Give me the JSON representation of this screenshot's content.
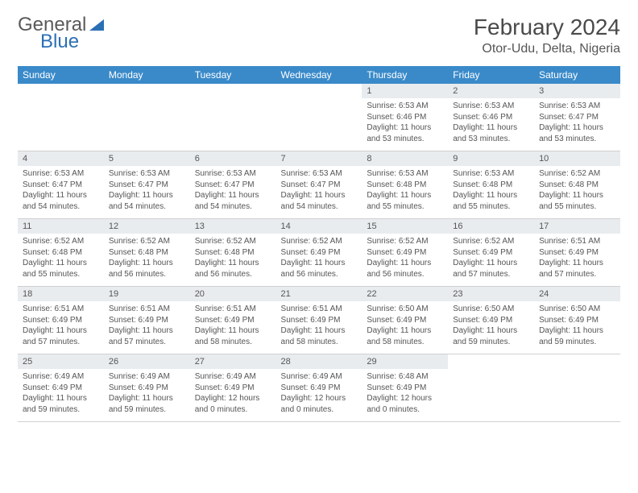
{
  "brand": {
    "part1": "General",
    "part2": "Blue"
  },
  "title": "February 2024",
  "location": "Otor-Udu, Delta, Nigeria",
  "colors": {
    "header_bg": "#3a8ac9",
    "header_text": "#ffffff",
    "daynum_bg": "#e9ecef",
    "text": "#555555",
    "brand_blue": "#2b6fb5"
  },
  "weekdays": [
    "Sunday",
    "Monday",
    "Tuesday",
    "Wednesday",
    "Thursday",
    "Friday",
    "Saturday"
  ],
  "weeks": [
    [
      null,
      null,
      null,
      null,
      {
        "n": "1",
        "sr": "6:53 AM",
        "ss": "6:46 PM",
        "dl": "11 hours and 53 minutes."
      },
      {
        "n": "2",
        "sr": "6:53 AM",
        "ss": "6:46 PM",
        "dl": "11 hours and 53 minutes."
      },
      {
        "n": "3",
        "sr": "6:53 AM",
        "ss": "6:47 PM",
        "dl": "11 hours and 53 minutes."
      }
    ],
    [
      {
        "n": "4",
        "sr": "6:53 AM",
        "ss": "6:47 PM",
        "dl": "11 hours and 54 minutes."
      },
      {
        "n": "5",
        "sr": "6:53 AM",
        "ss": "6:47 PM",
        "dl": "11 hours and 54 minutes."
      },
      {
        "n": "6",
        "sr": "6:53 AM",
        "ss": "6:47 PM",
        "dl": "11 hours and 54 minutes."
      },
      {
        "n": "7",
        "sr": "6:53 AM",
        "ss": "6:47 PM",
        "dl": "11 hours and 54 minutes."
      },
      {
        "n": "8",
        "sr": "6:53 AM",
        "ss": "6:48 PM",
        "dl": "11 hours and 55 minutes."
      },
      {
        "n": "9",
        "sr": "6:53 AM",
        "ss": "6:48 PM",
        "dl": "11 hours and 55 minutes."
      },
      {
        "n": "10",
        "sr": "6:52 AM",
        "ss": "6:48 PM",
        "dl": "11 hours and 55 minutes."
      }
    ],
    [
      {
        "n": "11",
        "sr": "6:52 AM",
        "ss": "6:48 PM",
        "dl": "11 hours and 55 minutes."
      },
      {
        "n": "12",
        "sr": "6:52 AM",
        "ss": "6:48 PM",
        "dl": "11 hours and 56 minutes."
      },
      {
        "n": "13",
        "sr": "6:52 AM",
        "ss": "6:48 PM",
        "dl": "11 hours and 56 minutes."
      },
      {
        "n": "14",
        "sr": "6:52 AM",
        "ss": "6:49 PM",
        "dl": "11 hours and 56 minutes."
      },
      {
        "n": "15",
        "sr": "6:52 AM",
        "ss": "6:49 PM",
        "dl": "11 hours and 56 minutes."
      },
      {
        "n": "16",
        "sr": "6:52 AM",
        "ss": "6:49 PM",
        "dl": "11 hours and 57 minutes."
      },
      {
        "n": "17",
        "sr": "6:51 AM",
        "ss": "6:49 PM",
        "dl": "11 hours and 57 minutes."
      }
    ],
    [
      {
        "n": "18",
        "sr": "6:51 AM",
        "ss": "6:49 PM",
        "dl": "11 hours and 57 minutes."
      },
      {
        "n": "19",
        "sr": "6:51 AM",
        "ss": "6:49 PM",
        "dl": "11 hours and 57 minutes."
      },
      {
        "n": "20",
        "sr": "6:51 AM",
        "ss": "6:49 PM",
        "dl": "11 hours and 58 minutes."
      },
      {
        "n": "21",
        "sr": "6:51 AM",
        "ss": "6:49 PM",
        "dl": "11 hours and 58 minutes."
      },
      {
        "n": "22",
        "sr": "6:50 AM",
        "ss": "6:49 PM",
        "dl": "11 hours and 58 minutes."
      },
      {
        "n": "23",
        "sr": "6:50 AM",
        "ss": "6:49 PM",
        "dl": "11 hours and 59 minutes."
      },
      {
        "n": "24",
        "sr": "6:50 AM",
        "ss": "6:49 PM",
        "dl": "11 hours and 59 minutes."
      }
    ],
    [
      {
        "n": "25",
        "sr": "6:49 AM",
        "ss": "6:49 PM",
        "dl": "11 hours and 59 minutes."
      },
      {
        "n": "26",
        "sr": "6:49 AM",
        "ss": "6:49 PM",
        "dl": "11 hours and 59 minutes."
      },
      {
        "n": "27",
        "sr": "6:49 AM",
        "ss": "6:49 PM",
        "dl": "12 hours and 0 minutes."
      },
      {
        "n": "28",
        "sr": "6:49 AM",
        "ss": "6:49 PM",
        "dl": "12 hours and 0 minutes."
      },
      {
        "n": "29",
        "sr": "6:48 AM",
        "ss": "6:49 PM",
        "dl": "12 hours and 0 minutes."
      },
      null,
      null
    ]
  ],
  "labels": {
    "sunrise": "Sunrise:",
    "sunset": "Sunset:",
    "daylight": "Daylight:"
  }
}
